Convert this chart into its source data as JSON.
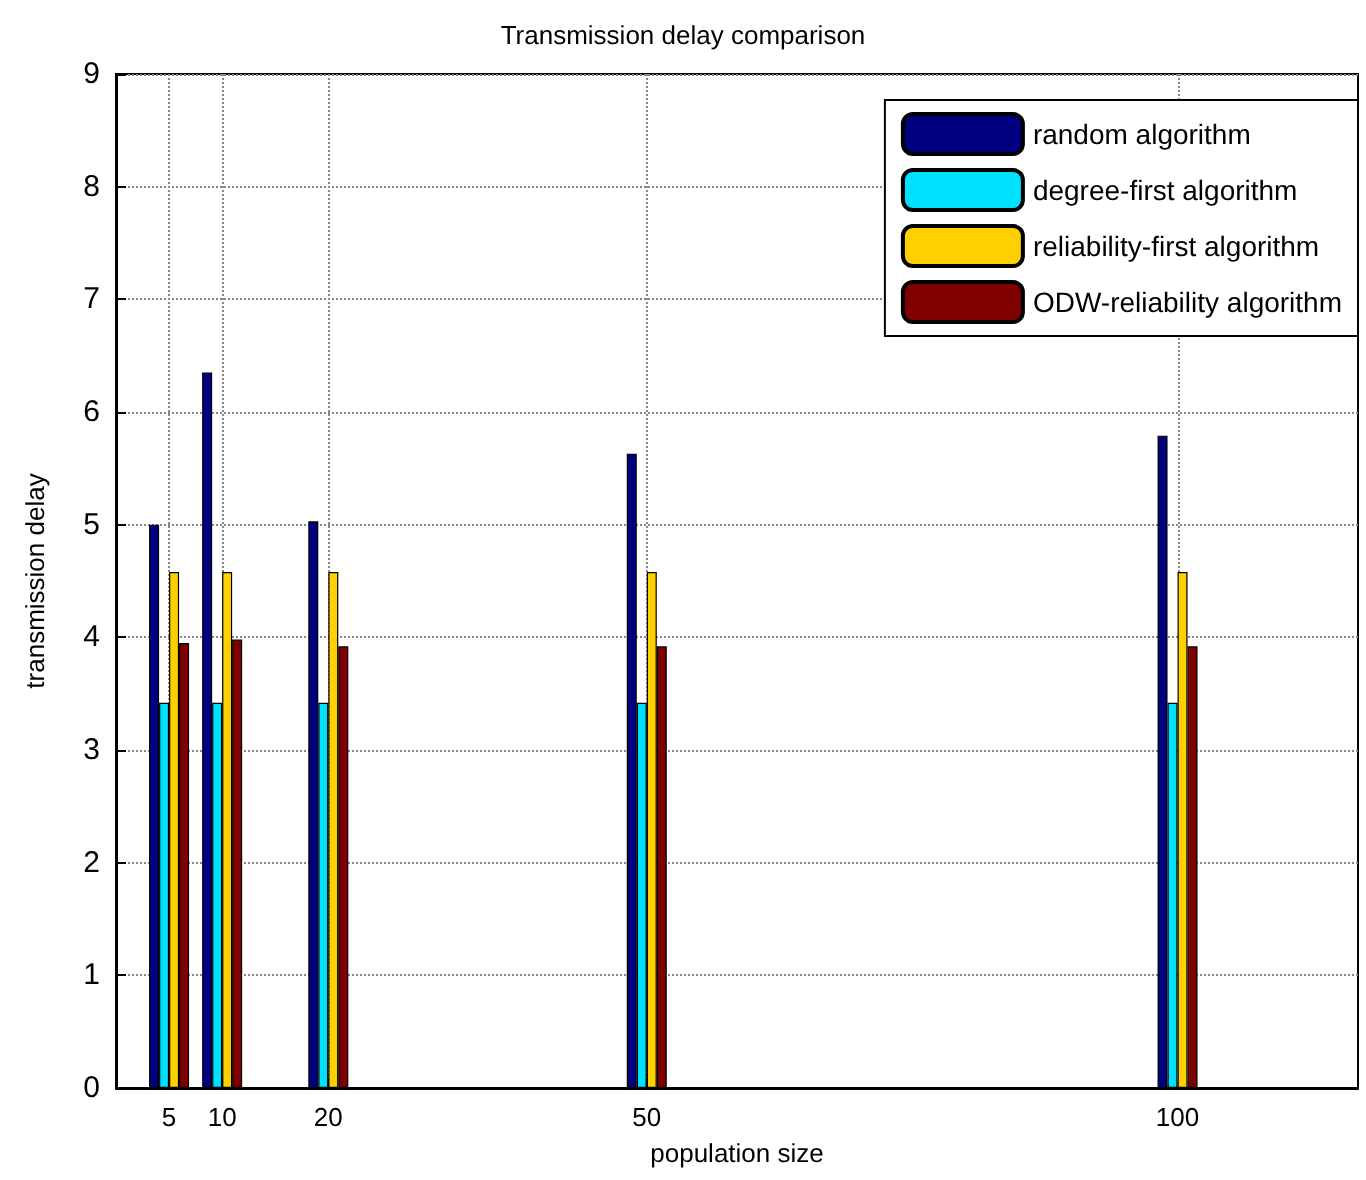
{
  "chart_data": {
    "type": "bar",
    "title": "Transmission delay comparison",
    "xlabel": "population size",
    "ylabel": "transmission delay",
    "x": [
      5,
      10,
      20,
      50,
      100
    ],
    "series": [
      {
        "name": "random algorithm",
        "color": "#000080",
        "values": [
          5.0,
          6.35,
          5.03,
          5.63,
          5.79
        ]
      },
      {
        "name": "degree-first algorithm",
        "color": "#00e0ff",
        "values": [
          3.42,
          3.42,
          3.42,
          3.42,
          3.42
        ]
      },
      {
        "name": "reliability-first algorithm",
        "color": "#ffd000",
        "values": [
          4.58,
          4.58,
          4.58,
          4.58,
          4.58
        ]
      },
      {
        "name": "ODW-reliability algorithm",
        "color": "#800000",
        "values": [
          3.95,
          3.98,
          3.92,
          3.92,
          3.92
        ]
      }
    ],
    "xlim": [
      0,
      117
    ],
    "xticks": [
      5,
      10,
      20,
      50,
      100
    ],
    "ylim": [
      0,
      9
    ],
    "yticks": [
      0,
      1,
      2,
      3,
      4,
      5,
      6,
      7,
      8,
      9
    ],
    "grid": true,
    "legend": "top right"
  }
}
